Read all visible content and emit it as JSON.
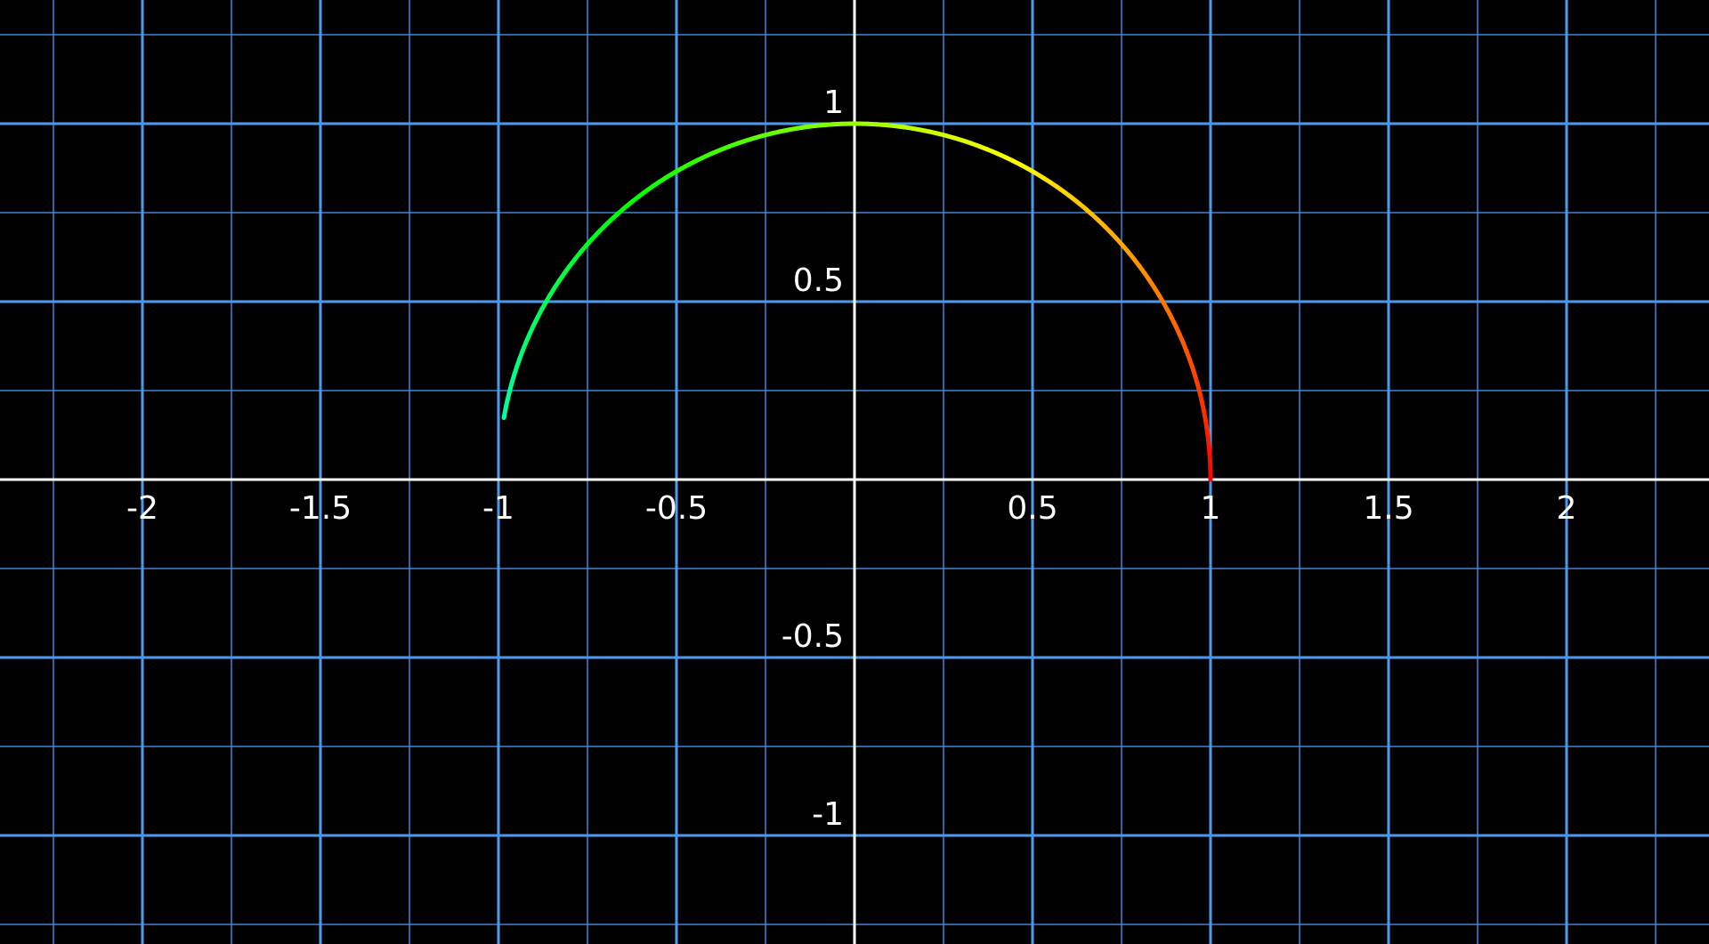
{
  "chart_data": {
    "type": "line",
    "title": "",
    "xlabel": "",
    "ylabel": "",
    "xlim": [
      -2.4,
      2.4
    ],
    "ylim": [
      -1.3,
      1.35
    ],
    "grid": true,
    "legend": "none",
    "x_ticks": [
      {
        "value": -2,
        "label": "-2"
      },
      {
        "value": -1.5,
        "label": "-1.5"
      },
      {
        "value": -1,
        "label": "-1"
      },
      {
        "value": -0.5,
        "label": "-0.5"
      },
      {
        "value": 0.5,
        "label": "0.5"
      },
      {
        "value": 1,
        "label": "1"
      },
      {
        "value": 1.5,
        "label": "1.5"
      },
      {
        "value": 2,
        "label": "2"
      }
    ],
    "y_ticks": [
      {
        "value": 1,
        "label": "1"
      },
      {
        "value": 0.5,
        "label": "0.5"
      },
      {
        "value": -0.5,
        "label": "-0.5"
      },
      {
        "value": -1,
        "label": "-1"
      }
    ],
    "series": [
      {
        "curve": "unit-circle-arc",
        "angle_start_deg": 0,
        "angle_end_deg": 170,
        "color_start": "#ff0000",
        "color_end": "#00ee99",
        "x": [
          1.0,
          0.985,
          0.94,
          0.866,
          0.766,
          0.643,
          0.5,
          0.342,
          0.174,
          0.0,
          -0.174,
          -0.342,
          -0.5,
          -0.643,
          -0.766,
          -0.866,
          -0.94,
          -0.985
        ],
        "y": [
          0.0,
          0.174,
          0.342,
          0.5,
          0.643,
          0.766,
          0.866,
          0.94,
          0.985,
          1.0,
          0.985,
          0.94,
          0.866,
          0.766,
          0.643,
          0.5,
          0.342,
          0.174
        ]
      }
    ],
    "colors": {
      "background": "#000000",
      "major_grid": "#4a9bf0",
      "minor_grid": "#3d86d8",
      "axes": "#ffffff",
      "tick_label": "#ffffff"
    }
  }
}
